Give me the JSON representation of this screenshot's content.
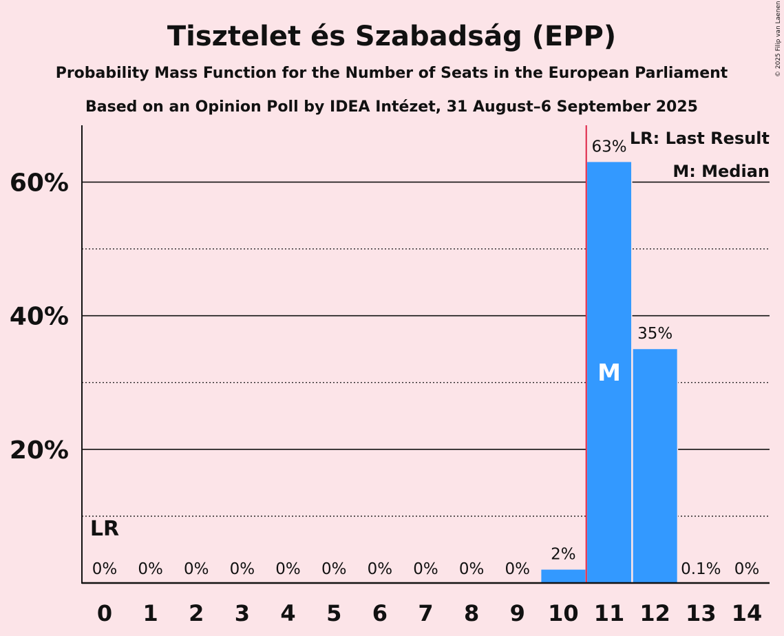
{
  "chart_data": {
    "type": "bar",
    "title": "Tisztelet és Szabadság (EPP)",
    "subtitle1": "Probability Mass Function for the Number of Seats in the European Parliament",
    "subtitle2": "Based on an Opinion Poll by IDEA Intézet, 31 August–6 September 2025",
    "copyright": "© 2025 Filip van Laenen",
    "categories": [
      "0",
      "1",
      "2",
      "3",
      "4",
      "5",
      "6",
      "7",
      "8",
      "9",
      "10",
      "11",
      "12",
      "13",
      "14"
    ],
    "values": [
      0,
      0,
      0,
      0,
      0,
      0,
      0,
      0,
      0,
      0,
      2,
      63,
      35,
      0.1,
      0
    ],
    "labels": [
      "0%",
      "0%",
      "0%",
      "0%",
      "0%",
      "0%",
      "0%",
      "0%",
      "0%",
      "0%",
      "2%",
      "63%",
      "35%",
      "0.1%",
      "0%"
    ],
    "ylim": [
      0,
      68.5
    ],
    "yticks": [
      {
        "v": 20,
        "label": "20%"
      },
      {
        "v": 40,
        "label": "40%"
      },
      {
        "v": 60,
        "label": "60%"
      }
    ],
    "minor_gridlines": [
      10,
      30,
      50
    ],
    "last_result_seat": 0,
    "last_result_marker": "LR",
    "median_seat": 11,
    "median_marker": "M",
    "threshold_line_between": [
      10,
      11
    ],
    "legend": [
      "LR: Last Result",
      "M: Median"
    ],
    "legend_position": "top-right",
    "colors": {
      "bar": "#3399ff",
      "background": "#fce4e8",
      "threshold": "#dd2244",
      "text": "#111111"
    }
  }
}
